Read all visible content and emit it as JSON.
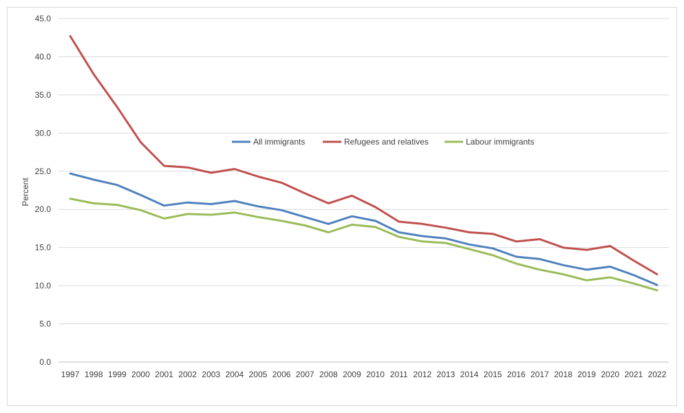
{
  "chart_data": {
    "type": "line",
    "title": "",
    "xlabel": "",
    "ylabel": "Percent",
    "ylim": [
      0,
      45
    ],
    "y_ticks": [
      "0.0",
      "5.0",
      "10.0",
      "15.0",
      "20.0",
      "25.0",
      "30.0",
      "35.0",
      "40.0",
      "45.0"
    ],
    "grid": true,
    "legend_position": "center",
    "x": [
      "1997",
      "1998",
      "1999",
      "2000",
      "2001",
      "2002",
      "2003",
      "2004",
      "2005",
      "2006",
      "2007",
      "2008",
      "2009",
      "2010",
      "2011",
      "2012",
      "2013",
      "2014",
      "2015",
      "2016",
      "2017",
      "2018",
      "2019",
      "2020",
      "2021",
      "2022"
    ],
    "series": [
      {
        "name": "All immigrants",
        "color": "#4f81bd",
        "values": [
          24.7,
          23.9,
          23.2,
          21.9,
          20.5,
          20.9,
          20.7,
          21.1,
          20.4,
          19.9,
          19.0,
          18.1,
          19.1,
          18.5,
          17.0,
          16.5,
          16.2,
          15.4,
          14.9,
          13.8,
          13.5,
          12.7,
          12.1,
          12.5,
          11.4,
          10.1
        ]
      },
      {
        "name": "Refugees and relatives",
        "color": "#c0504d",
        "values": [
          42.7,
          37.7,
          33.4,
          28.8,
          25.7,
          25.5,
          24.8,
          25.3,
          24.3,
          23.5,
          22.1,
          20.8,
          21.8,
          20.3,
          18.4,
          18.1,
          17.6,
          17.0,
          16.8,
          15.8,
          16.1,
          15.0,
          14.7,
          15.2,
          13.3,
          11.5
        ]
      },
      {
        "name": "Labour immigrants",
        "color": "#9bbb59",
        "values": [
          21.4,
          20.8,
          20.6,
          19.9,
          18.8,
          19.4,
          19.3,
          19.6,
          19.0,
          18.5,
          17.9,
          17.0,
          18.0,
          17.7,
          16.4,
          15.8,
          15.6,
          14.8,
          14.0,
          12.9,
          12.1,
          11.5,
          10.7,
          11.1,
          10.3,
          9.4
        ]
      }
    ]
  }
}
